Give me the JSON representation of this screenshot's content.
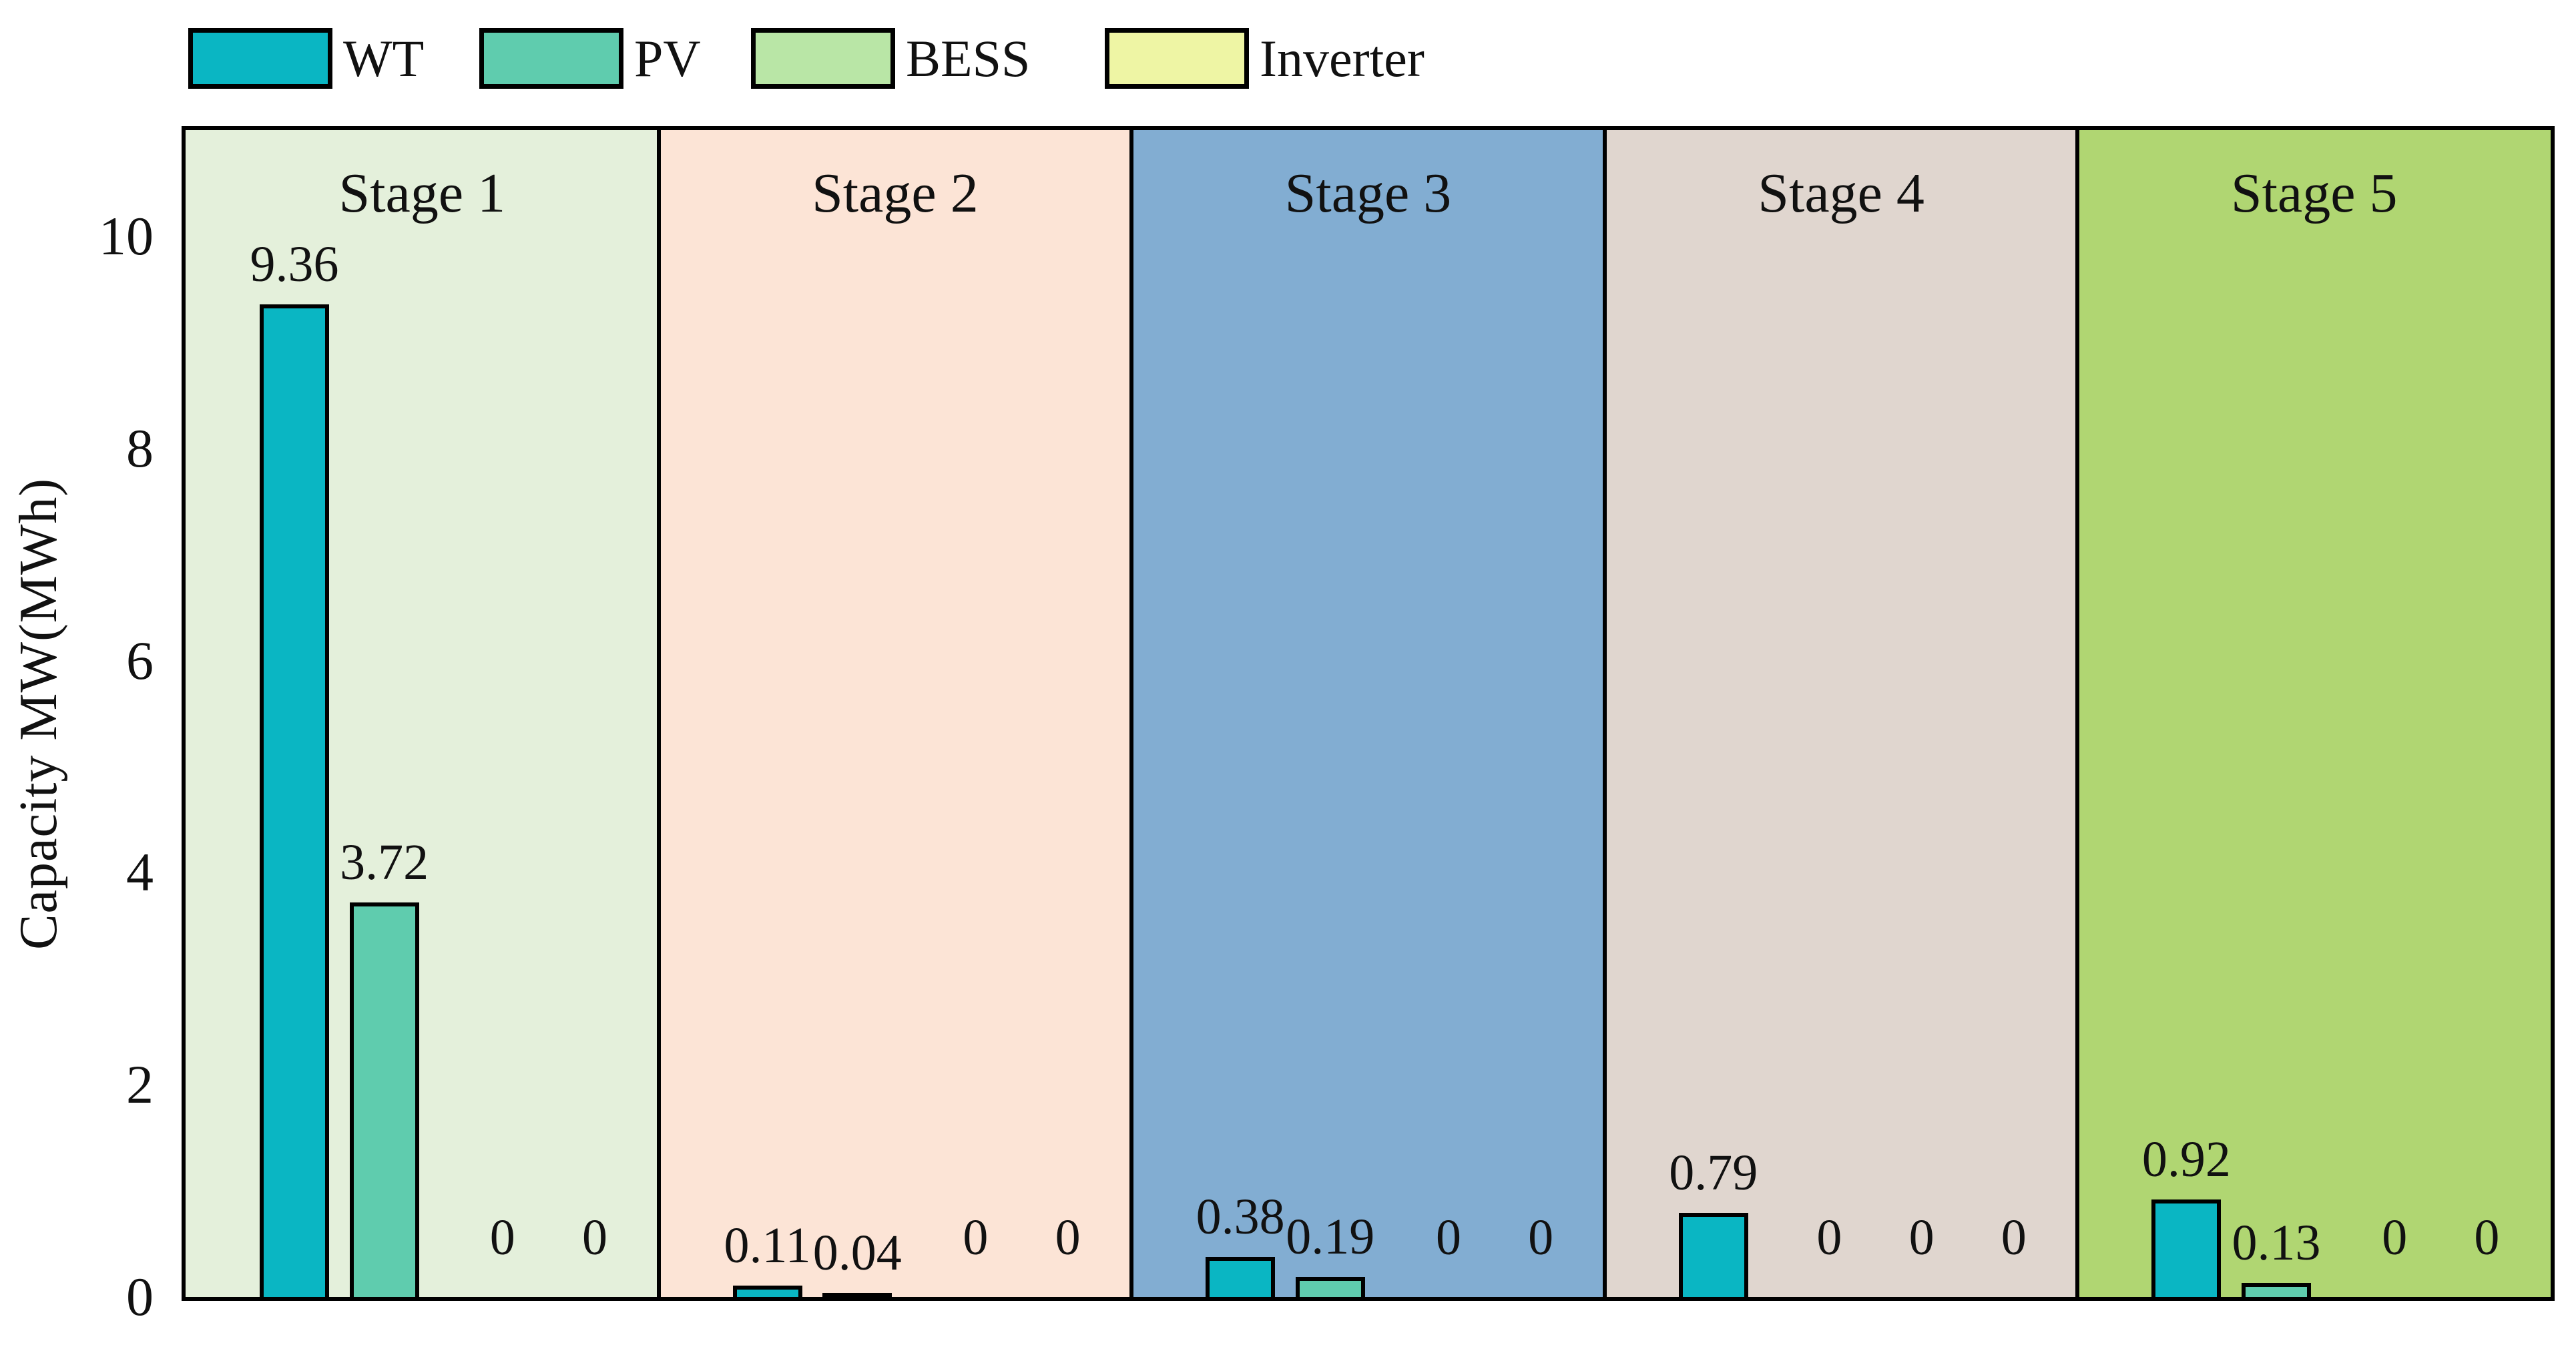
{
  "chart_data": {
    "type": "bar",
    "title": "",
    "xlabel": "",
    "ylabel": "Capacity MW(MWh)",
    "yticks": [
      "0",
      "2",
      "4",
      "6",
      "8",
      "10"
    ],
    "ytick_values": [
      0,
      2,
      4,
      6,
      8,
      10
    ],
    "ylim": [
      0,
      11
    ],
    "grid": false,
    "legend_position": "top-left-horizontal",
    "categories": [
      "Stage 1",
      "Stage 2",
      "Stage 3",
      "Stage 4",
      "Stage 5"
    ],
    "band_colors": [
      "#e4f0db",
      "#fce4d6",
      "#82add2",
      "#e0d6cf",
      "#b0d672"
    ],
    "series": [
      {
        "name": "WT",
        "color": "#0ab6c3",
        "values": [
          9.36,
          0.11,
          0.38,
          0.79,
          0.92
        ],
        "labels": [
          "9.36",
          "0.11",
          "0.38",
          "0.79",
          "0.92"
        ]
      },
      {
        "name": "PV",
        "color": "#5fccae",
        "values": [
          3.72,
          0.04,
          0.19,
          0.0,
          0.13
        ],
        "labels": [
          "3.72",
          "0.04",
          "0.19",
          "0",
          "0.13"
        ]
      },
      {
        "name": "BESS",
        "color": "#b9e6a6",
        "values": [
          0,
          0,
          0,
          0,
          0
        ],
        "labels": [
          "0",
          "0",
          "0",
          "0",
          "0"
        ]
      },
      {
        "name": "Inverter",
        "color": "#eef5a4",
        "values": [
          0,
          0,
          0,
          0,
          0
        ],
        "labels": [
          "0",
          "0",
          "0",
          "0",
          "0"
        ]
      }
    ]
  },
  "colors": {
    "axis_line": "#000000",
    "text": "#111111",
    "background": "#ffffff"
  }
}
